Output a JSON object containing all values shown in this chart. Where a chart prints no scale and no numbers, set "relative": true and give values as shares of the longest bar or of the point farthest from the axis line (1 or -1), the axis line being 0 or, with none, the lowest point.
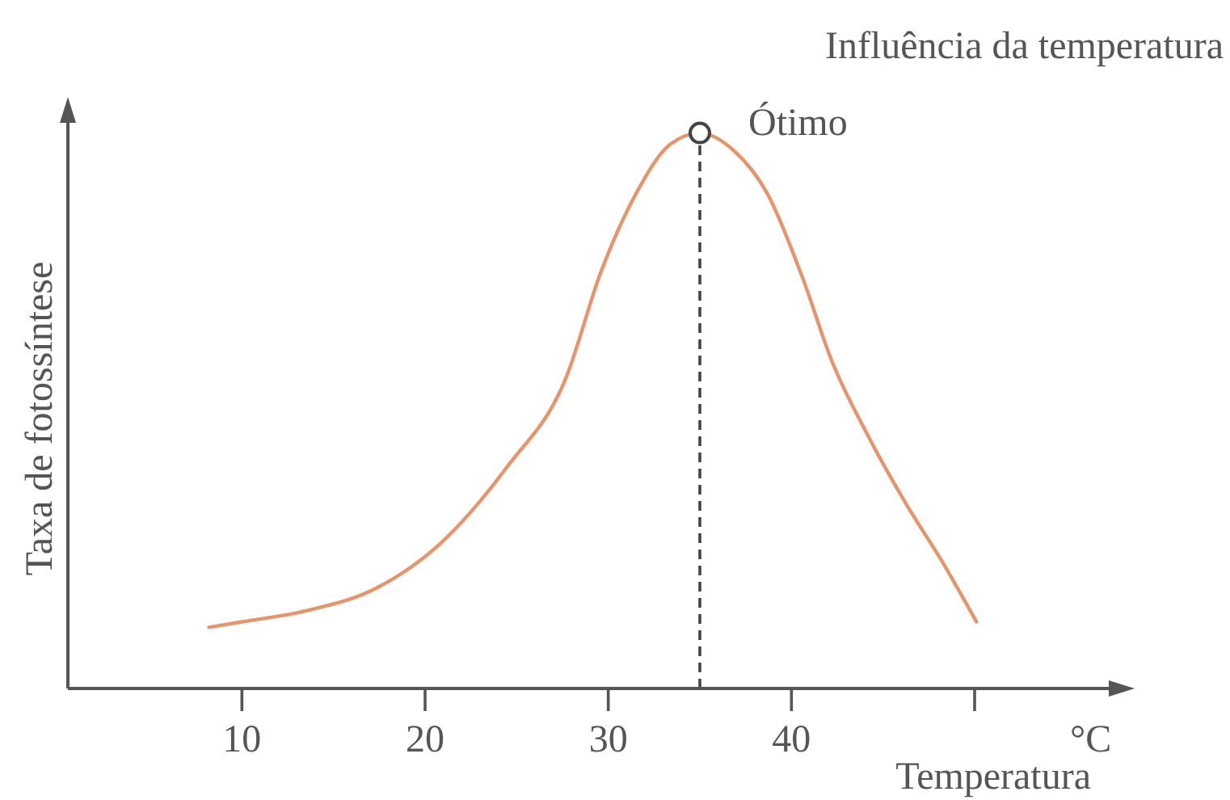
{
  "chart_data": {
    "type": "line",
    "title": "Influência da temperatura",
    "xlabel": "Temperatura",
    "ylabel": "Taxa de fotossíntese",
    "relative": true,
    "xlim": [
      0.5,
      57.5
    ],
    "xticks": [
      10,
      20,
      30,
      40,
      {
        "value": 50,
        "label": null
      }
    ],
    "annotations": [
      "°C",
      {
        "text": "Ótimo",
        "x": 35,
        "y": 1
      }
    ],
    "ref_lines": [
      {
        "axis": "x",
        "value": 35,
        "line_style": "dashed",
        "color": "#444444"
      }
    ],
    "series": [
      {
        "color": "#e8946a",
        "x": [
          8.2,
          10,
          13.5,
          17.3,
          20.8,
          24.5,
          27.7,
          29.6,
          31.5,
          33.4,
          35,
          36.8,
          38.7,
          40.6,
          42.2,
          44.1,
          46.3,
          48.2,
          50.1
        ],
        "values": [
          0.11,
          0.12,
          0.14,
          0.18,
          0.26,
          0.4,
          0.56,
          0.75,
          0.89,
          0.98,
          1,
          0.97,
          0.89,
          0.74,
          0.59,
          0.46,
          0.33,
          0.23,
          0.12
        ]
      },
      {
        "type": "scatter",
        "color": "#444444",
        "marker": "circle",
        "x": [
          35
        ],
        "values": [
          1
        ]
      }
    ]
  }
}
